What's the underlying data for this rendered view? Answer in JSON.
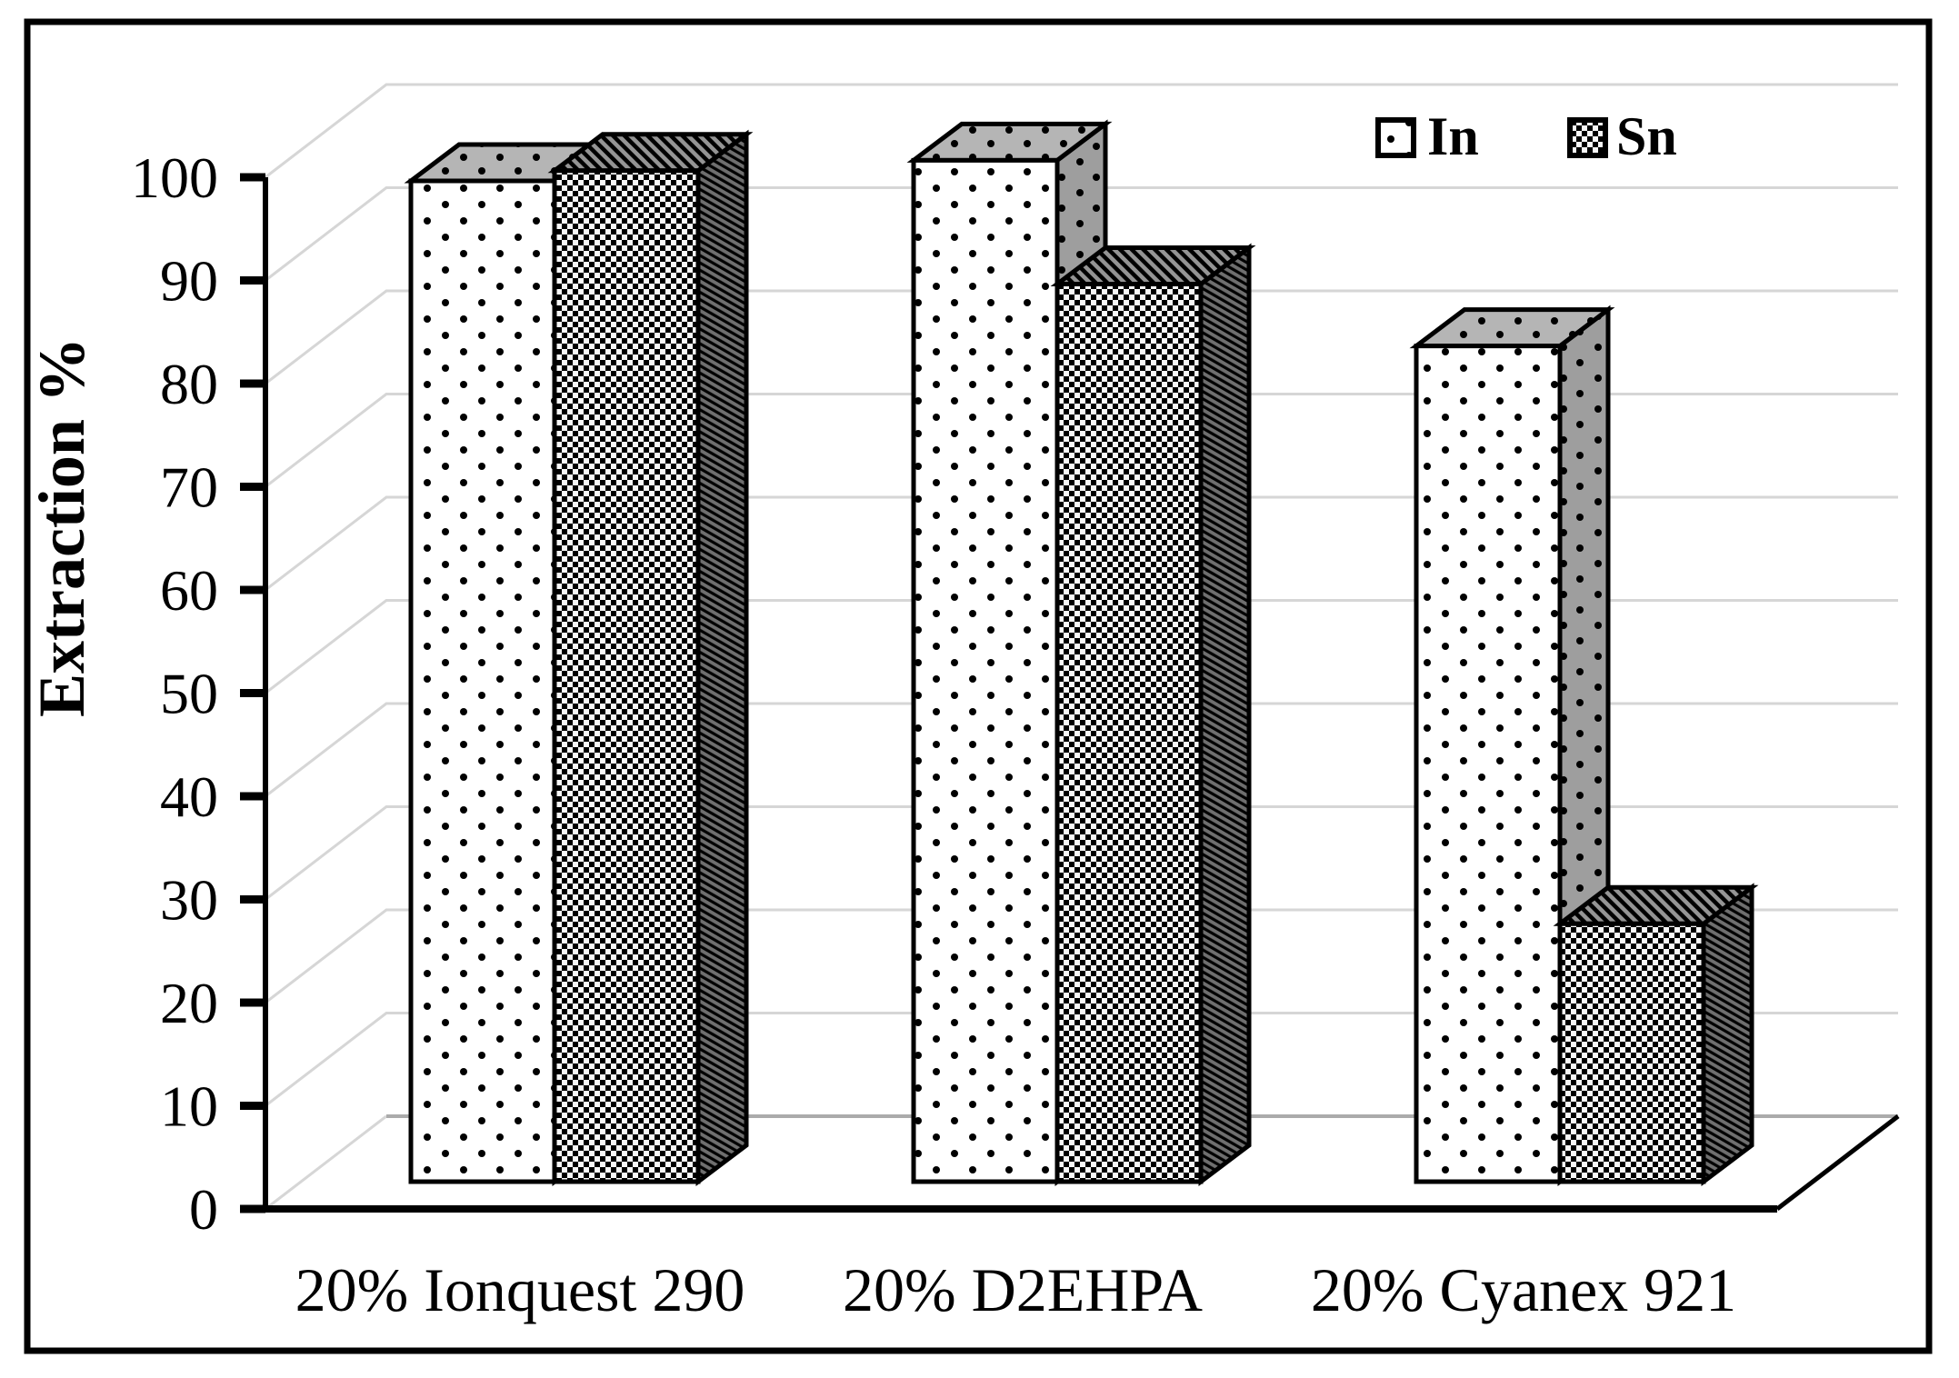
{
  "figure": {
    "description": "3D clustered bar chart comparing extraction percentage of In and Sn with three extractants",
    "background": "#ffffff",
    "frame_color": "#000000"
  },
  "chart_data": {
    "type": "bar",
    "projection": "3d-oblique",
    "title": "",
    "ylabel": "Extraction %",
    "xlabel": "",
    "ylim": [
      0,
      100
    ],
    "ytick_step": 10,
    "y_tick_labels": [
      "0",
      "10",
      "20",
      "30",
      "40",
      "50",
      "60",
      "70",
      "80",
      "90",
      "100"
    ],
    "categories": [
      "20% Ionquest 290",
      "20% D2EHPA",
      "20% Cyanex 921"
    ],
    "series": [
      {
        "name": "In",
        "pattern": "dots",
        "values": [
          97,
          99,
          81
        ]
      },
      {
        "name": "Sn",
        "pattern": "checker",
        "values": [
          98,
          87,
          25
        ]
      }
    ],
    "legend": {
      "position": "top-right",
      "entries": [
        "In",
        "Sn"
      ]
    },
    "grid": true
  },
  "colors": {
    "axis": "#000000",
    "gridline": "#d6d6d6",
    "floor_back_edge": "#ababab",
    "floor_right_edge": "#000000",
    "bar_outline": "#000000",
    "dots_front_bg": "#ffffff",
    "dots_top_bg": "#b5b5b5",
    "dots_side_bg": "#9e9e9e",
    "dot_color": "#000000",
    "checker_black": "#000000",
    "checker_white": "#f7f7f7",
    "hatch_top_bg": "#949494",
    "hatch_side_bg": "#6f6f6f",
    "text": "#000000"
  }
}
